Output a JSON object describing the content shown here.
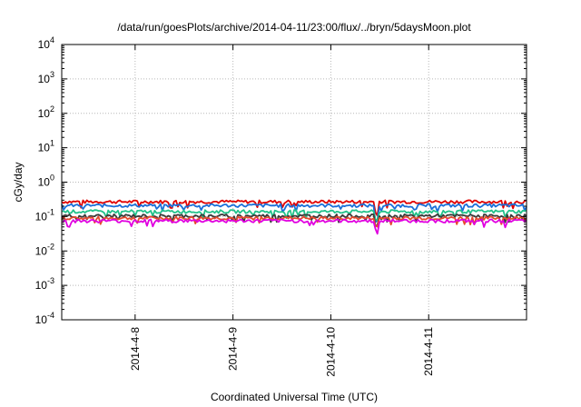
{
  "chart_data": {
    "type": "line",
    "title": "/data/run/goesPlots/archive/2014-04-11/23:00/flux/../bryn/5daysMoon.plot",
    "xlabel": "Coordinated Universal Time (UTC)",
    "ylabel": "cGy/day",
    "y_scale": "log",
    "ylim_exponents": [
      -4,
      4
    ],
    "y_tick_exponents": [
      4,
      3,
      2,
      1,
      0,
      -1,
      -2,
      -3,
      -4
    ],
    "y_tick_base": "10",
    "xlim": [
      "2014-04-07 06:00",
      "2014-04-12 00:00"
    ],
    "x_ticks": [
      "2014-4-8",
      "2014-4-9",
      "2014-4-10",
      "2014-4-11"
    ],
    "x_tick_days": [
      1,
      2,
      3,
      4
    ],
    "x_range_days": [
      0.25,
      5.0
    ],
    "grid": true,
    "legend": "none",
    "series_colors": [
      "#e00000",
      "#1a6fd8",
      "#22c28a",
      "#3a3a3a",
      "#e64a2e",
      "#e000e0"
    ],
    "series_levels": [
      0.27,
      0.21,
      0.14,
      0.105,
      0.09,
      0.075
    ],
    "series_note": "Six noisy traces hovering near the given levels across the full time range; a sharp dip near 2014-04-10 12:00."
  }
}
